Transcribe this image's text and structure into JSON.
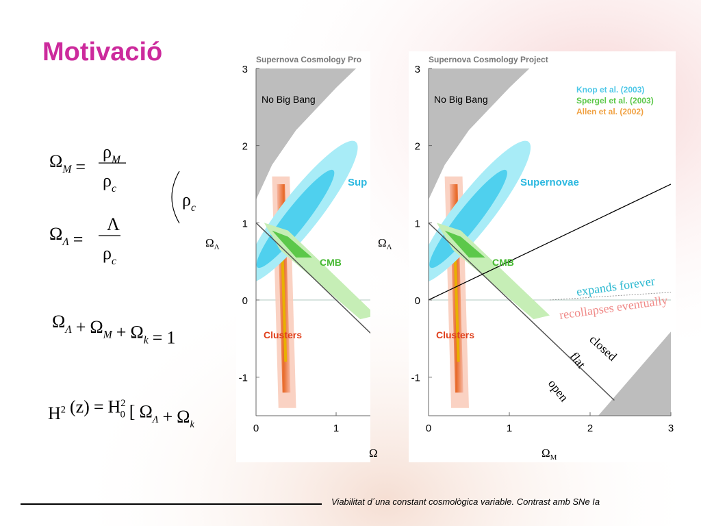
{
  "title": "Motivació",
  "equations": {
    "omega_m": {
      "lhs": [
        {
          "text": "Ω",
          "sub": "M"
        },
        "="
      ],
      "num": [
        {
          "text": "ρ",
          "sub": "M"
        }
      ],
      "den": [
        {
          "text": "ρ",
          "sub": "c"
        }
      ]
    },
    "omega_lambda": {
      "lhs": [
        {
          "text": "Ω",
          "sub": "Λ"
        },
        "="
      ],
      "num": [
        "Λ"
      ],
      "den": [
        {
          "text": "ρ",
          "sub": "c"
        }
      ]
    },
    "rho_c": [
      {
        "text": "ρ",
        "sub": "c"
      }
    ],
    "sum": [
      {
        "text": "Ω",
        "sub": "Λ"
      },
      "+",
      {
        "text": "Ω",
        "sub": "M"
      },
      "+",
      {
        "text": "Ω",
        "sub": "k"
      },
      "=",
      "1"
    ],
    "hubble": [
      {
        "text": "H",
        "sup": "2"
      },
      "(z)",
      "=",
      {
        "text": "H",
        "sup": "2",
        "sub": "0"
      },
      "[",
      {
        "text": "Ω",
        "sub": "Λ"
      },
      "+",
      {
        "text": "Ω",
        "sub": "k"
      }
    ]
  },
  "figures": [
    {
      "header": "Supernova Cosmology Pro",
      "yticks": [
        3,
        2,
        1,
        0,
        -1
      ],
      "xticks": [
        0,
        1
      ],
      "y_label": {
        "text": "Ω",
        "sub": "Λ"
      },
      "x_label": "Ω",
      "labels": {
        "no_big_bang": "No Big Bang",
        "supernovae": "Sup",
        "cmb": "CMB",
        "clusters": "Clusters"
      }
    },
    {
      "header": "Supernova Cosmology Project",
      "yticks": [
        3,
        2,
        1,
        0,
        -1
      ],
      "xticks": [
        0,
        1,
        2,
        3
      ],
      "y_label": {
        "text": "Ω",
        "sub": "Λ"
      },
      "x_label": {
        "text": "Ω",
        "sub": "M"
      },
      "labels": {
        "no_big_bang": "No Big Bang",
        "supernovae": "Supernovae",
        "cmb": "CMB",
        "clusters": "Clusters",
        "expands": "expands forever",
        "recollapses": "recollapses eventually",
        "closed": "closed",
        "flat": "flat",
        "open": "open"
      },
      "legend": [
        "Knop et al. (2003)",
        "Spergel et al.  (2003)",
        "Allen et al.  (2002)"
      ]
    }
  ],
  "footer": "Viabilitat d´una constant cosmològica variable. Contrast amb SNe Ia"
}
